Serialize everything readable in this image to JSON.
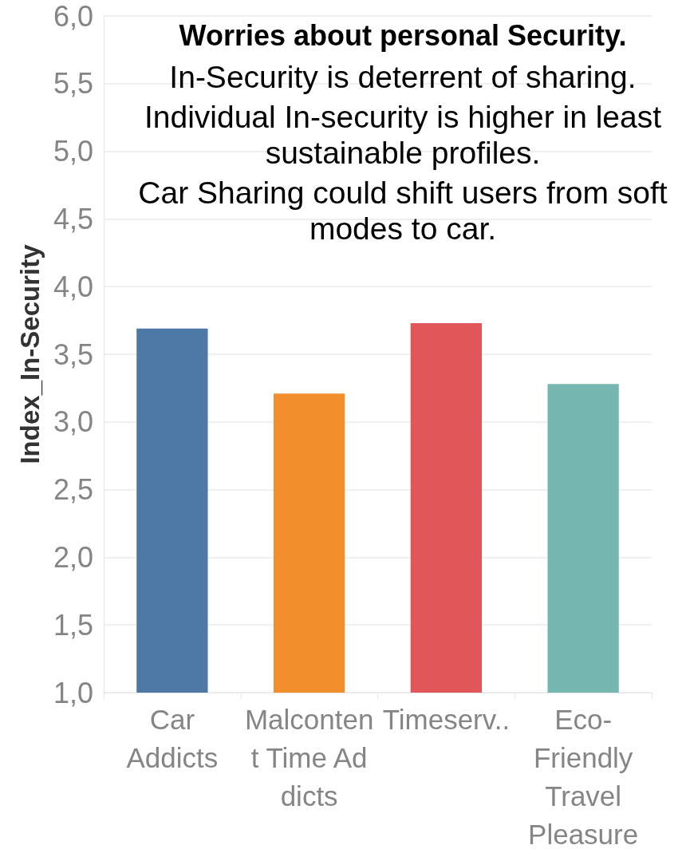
{
  "chart_data": {
    "type": "bar",
    "title": "Worries about personal Security.",
    "annotations": [
      "In-Security is deterrent of sharing.",
      "Individual In-security is higher in least sustainable profiles.",
      "Car Sharing could shift users from soft modes to car."
    ],
    "ylabel": "Index_In-Security",
    "categories": [
      "Car Addicts",
      "Malcontent Time Addicts",
      "Timeserv..",
      "Eco-Friendly Travel Pleasure"
    ],
    "values": [
      3.69,
      3.21,
      3.73,
      3.28
    ],
    "colors": [
      "#4e79a7",
      "#f28e2b",
      "#e15759",
      "#76b7b2"
    ],
    "ylim": [
      1,
      6
    ],
    "yticks": [
      {
        "value": 1,
        "label": "1,0"
      },
      {
        "value": 1.5,
        "label": "1,5"
      },
      {
        "value": 2,
        "label": "2,0"
      },
      {
        "value": 2.5,
        "label": "2,5"
      },
      {
        "value": 3,
        "label": "3,0"
      },
      {
        "value": 3.5,
        "label": "3,5"
      },
      {
        "value": 4,
        "label": "4,0"
      },
      {
        "value": 4.5,
        "label": "4,5"
      },
      {
        "value": 5,
        "label": "5,0"
      },
      {
        "value": 5.5,
        "label": "5,5"
      },
      {
        "value": 6,
        "label": "6,0"
      }
    ],
    "grid": "y"
  }
}
